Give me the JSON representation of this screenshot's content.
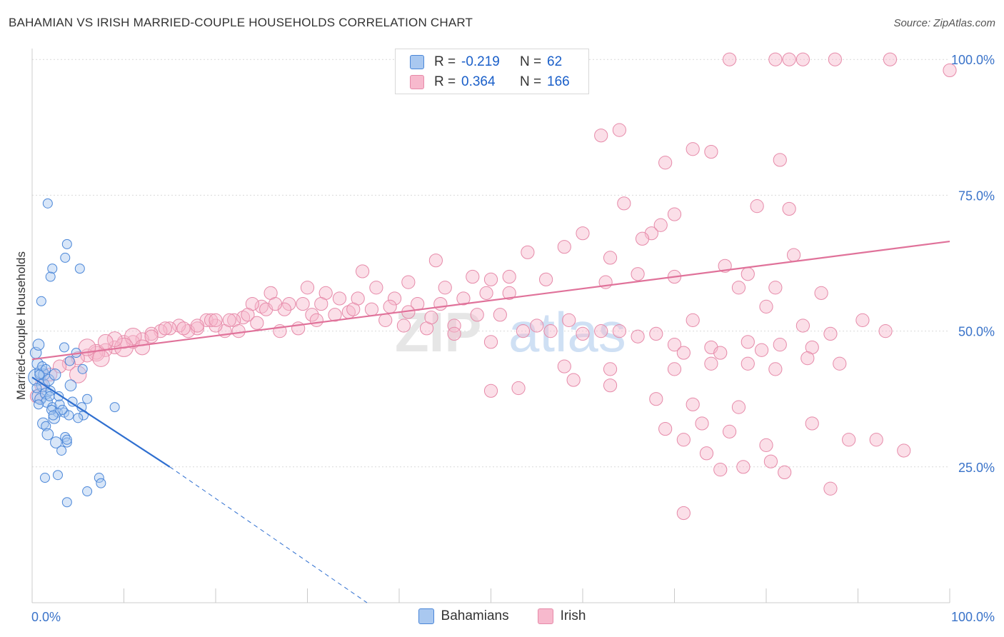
{
  "header": {
    "title": "BAHAMIAN VS IRISH MARRIED-COUPLE HOUSEHOLDS CORRELATION CHART",
    "source": "Source: ZipAtlas.com"
  },
  "legend": {
    "r_label": "R =",
    "n_label": "N =",
    "bahamians": {
      "r": "-0.219",
      "n": "62"
    },
    "irish": {
      "r": "0.364",
      "n": "166"
    }
  },
  "watermark": {
    "zip": "ZIP",
    "atlas": "atlas"
  },
  "colors": {
    "bahamians_fill": "#a9c8f0",
    "bahamians_stroke": "#4a86d8",
    "bahamians_line": "#2f6fd0",
    "irish_fill": "#f7b9cd",
    "irish_stroke": "#e68aa9",
    "irish_line": "#e0729a",
    "axis_text": "#3a73c9",
    "grid": "#d9d9d9"
  },
  "chart_data": {
    "type": "scatter",
    "title": "BAHAMIAN VS IRISH MARRIED-COUPLE HOUSEHOLDS CORRELATION CHART",
    "xlabel": "",
    "ylabel": "Married-couple Households",
    "xlim": [
      0,
      100
    ],
    "ylim": [
      0,
      102
    ],
    "x_tick_labels": [
      "0.0%",
      "100.0%"
    ],
    "y_ticks": [
      25,
      50,
      75,
      100
    ],
    "y_tick_labels": [
      "25.0%",
      "50.0%",
      "75.0%",
      "100.0%"
    ],
    "grid": true,
    "legend_position": "top-center",
    "series": [
      {
        "name": "Bahamians",
        "r": -0.219,
        "n": 62,
        "trendline": {
          "x": [
            0,
            15
          ],
          "y": [
            41.5,
            25.0
          ]
        },
        "trendline_dashed_extension": {
          "x": [
            15,
            36.5
          ],
          "y": [
            25.0,
            0.0
          ]
        },
        "points": [
          [
            0.5,
            41.5,
            9
          ],
          [
            0.8,
            38,
            8
          ],
          [
            1,
            42.5,
            7
          ],
          [
            1.2,
            40,
            7
          ],
          [
            0.6,
            44,
            6
          ],
          [
            0.9,
            37.5,
            6
          ],
          [
            1.5,
            38.5,
            6
          ],
          [
            0.4,
            46,
            6
          ],
          [
            0.7,
            47.5,
            6
          ],
          [
            1.3,
            42,
            6
          ],
          [
            1.8,
            41,
            6
          ],
          [
            2,
            39,
            5
          ],
          [
            2.5,
            42,
            6
          ],
          [
            1.6,
            37,
            6
          ],
          [
            2.2,
            36,
            5
          ],
          [
            2.8,
            35,
            5
          ],
          [
            3,
            36.5,
            5
          ],
          [
            2.4,
            34,
            6
          ],
          [
            3.5,
            35,
            5
          ],
          [
            4,
            34.5,
            5
          ],
          [
            1.2,
            33,
            6
          ],
          [
            1.5,
            32.5,
            5
          ],
          [
            1.7,
            31,
            6
          ],
          [
            2.6,
            29.5,
            6
          ],
          [
            3.2,
            28,
            5
          ],
          [
            3.6,
            30.5,
            5
          ],
          [
            3.8,
            29.5,
            5
          ],
          [
            1.4,
            23,
            5
          ],
          [
            2.8,
            23.5,
            5
          ],
          [
            3.8,
            66,
            5
          ],
          [
            3.6,
            63.5,
            5
          ],
          [
            2.2,
            61.5,
            5
          ],
          [
            2,
            60,
            5
          ],
          [
            5.2,
            61.5,
            5
          ],
          [
            1,
            55.5,
            5
          ],
          [
            1.7,
            73.5,
            5
          ],
          [
            3.5,
            47,
            5
          ],
          [
            5.5,
            43,
            5
          ],
          [
            6,
            37.5,
            5
          ],
          [
            5.4,
            36,
            5
          ],
          [
            5.6,
            34.5,
            5
          ],
          [
            4.2,
            40,
            6
          ],
          [
            4.8,
            46,
            5
          ],
          [
            4.4,
            37,
            5
          ],
          [
            5,
            34,
            5
          ],
          [
            9,
            36,
            5
          ],
          [
            3.8,
            30,
            5
          ],
          [
            6,
            20.5,
            5
          ],
          [
            7.3,
            23,
            5
          ],
          [
            7.5,
            22,
            5
          ],
          [
            3.8,
            18.5,
            5
          ],
          [
            1.1,
            43.5,
            5
          ],
          [
            0.7,
            36.5,
            5
          ],
          [
            2.1,
            35.5,
            5
          ],
          [
            0.5,
            39.5,
            5
          ],
          [
            1.5,
            43,
            5
          ],
          [
            0.8,
            42,
            5
          ],
          [
            2.3,
            34.5,
            5
          ],
          [
            3.3,
            35.5,
            5
          ],
          [
            1.9,
            38,
            5
          ],
          [
            2.9,
            38,
            5
          ],
          [
            4.1,
            44.5,
            5
          ]
        ]
      },
      {
        "name": "Irish",
        "r": 0.364,
        "n": 166,
        "trendline": {
          "x": [
            0,
            100
          ],
          "y": [
            44.8,
            66.5
          ]
        },
        "points": [
          [
            76,
            100,
            7
          ],
          [
            81,
            100,
            7
          ],
          [
            82.5,
            100,
            7
          ],
          [
            84,
            100,
            7
          ],
          [
            87.5,
            100,
            7
          ],
          [
            93.5,
            100,
            7
          ],
          [
            100,
            98,
            7
          ],
          [
            64.5,
            73.5,
            7
          ],
          [
            70,
            71.5,
            7
          ],
          [
            67.5,
            68,
            7
          ],
          [
            60,
            68,
            7
          ],
          [
            68.5,
            69.5,
            7
          ],
          [
            63,
            63.5,
            7
          ],
          [
            58,
            65.5,
            7
          ],
          [
            54,
            64.5,
            7
          ],
          [
            44,
            63,
            7
          ],
          [
            50,
            59.5,
            7
          ],
          [
            48,
            60,
            7
          ],
          [
            52,
            60,
            7
          ],
          [
            56,
            59.5,
            7
          ],
          [
            62.5,
            59,
            7
          ],
          [
            66,
            60.5,
            7
          ],
          [
            70,
            60,
            7
          ],
          [
            75.5,
            62,
            7
          ],
          [
            78,
            60.5,
            7
          ],
          [
            83,
            64,
            7
          ],
          [
            77,
            58,
            7
          ],
          [
            81,
            58,
            7
          ],
          [
            86,
            57,
            7
          ],
          [
            82.5,
            72.5,
            7
          ],
          [
            81.5,
            81.5,
            7
          ],
          [
            79,
            73,
            7
          ],
          [
            74,
            83,
            7
          ],
          [
            72,
            83.5,
            7
          ],
          [
            69,
            81,
            7
          ],
          [
            64,
            87,
            7
          ],
          [
            62,
            86,
            7
          ],
          [
            66.5,
            67,
            7
          ],
          [
            52,
            57,
            7
          ],
          [
            45,
            58,
            7
          ],
          [
            41,
            59,
            7
          ],
          [
            36,
            61,
            7
          ],
          [
            32,
            57,
            7
          ],
          [
            30,
            58,
            7
          ],
          [
            28,
            55,
            7
          ],
          [
            26,
            57,
            7
          ],
          [
            25,
            54.5,
            7
          ],
          [
            24,
            55,
            7
          ],
          [
            23,
            52.5,
            7
          ],
          [
            22,
            52,
            7
          ],
          [
            21,
            50,
            7
          ],
          [
            20,
            51,
            7
          ],
          [
            19,
            52,
            7
          ],
          [
            18,
            50.5,
            7
          ],
          [
            17,
            50,
            7
          ],
          [
            16,
            51,
            7
          ],
          [
            15,
            50.5,
            7
          ],
          [
            14,
            50,
            7
          ],
          [
            13,
            49.5,
            7
          ],
          [
            12,
            48.5,
            7
          ],
          [
            11,
            48,
            7
          ],
          [
            10,
            48,
            7
          ],
          [
            9,
            47,
            7
          ],
          [
            8,
            46.5,
            7
          ],
          [
            7,
            46,
            7
          ],
          [
            6,
            45.5,
            7
          ],
          [
            5,
            45,
            7
          ],
          [
            4,
            44,
            7
          ],
          [
            3,
            43.5,
            7
          ],
          [
            2,
            42,
            7
          ],
          [
            1,
            40,
            7
          ],
          [
            0.5,
            38,
            7
          ],
          [
            11,
            49,
            9
          ],
          [
            10,
            47,
            10
          ],
          [
            9,
            48.5,
            8
          ],
          [
            7,
            46,
            9
          ],
          [
            6,
            47,
            9
          ],
          [
            8,
            48,
            8
          ],
          [
            5,
            42,
            9
          ],
          [
            7.5,
            45,
            9
          ],
          [
            12,
            47,
            8
          ],
          [
            13,
            49,
            7
          ],
          [
            14.5,
            50.5,
            7
          ],
          [
            16.5,
            50.5,
            7
          ],
          [
            18,
            51,
            7
          ],
          [
            19.5,
            52,
            7
          ],
          [
            21.5,
            52,
            7
          ],
          [
            23.5,
            53,
            7
          ],
          [
            25.5,
            54,
            7
          ],
          [
            27.5,
            54,
            7
          ],
          [
            29.5,
            55,
            7
          ],
          [
            31.5,
            55,
            7
          ],
          [
            33.5,
            56,
            7
          ],
          [
            35.5,
            56,
            7
          ],
          [
            37.5,
            58,
            7
          ],
          [
            39.5,
            56,
            7
          ],
          [
            42,
            55,
            7
          ],
          [
            44.5,
            55,
            7
          ],
          [
            47,
            56,
            7
          ],
          [
            49.5,
            57,
            7
          ],
          [
            26.5,
            55,
            7
          ],
          [
            30.5,
            53,
            7
          ],
          [
            34.5,
            53.5,
            7
          ],
          [
            38.5,
            52,
            7
          ],
          [
            40.5,
            51,
            7
          ],
          [
            43,
            50.5,
            7
          ],
          [
            46,
            51,
            7
          ],
          [
            48.5,
            53,
            7
          ],
          [
            51,
            53,
            7
          ],
          [
            53.5,
            50,
            7
          ],
          [
            56.5,
            50,
            7
          ],
          [
            60,
            49.5,
            7
          ],
          [
            64,
            50,
            7
          ],
          [
            68,
            49.5,
            7
          ],
          [
            20,
            52,
            7
          ],
          [
            22.5,
            50,
            7
          ],
          [
            24.5,
            51.5,
            7
          ],
          [
            27,
            50,
            7
          ],
          [
            29,
            50.5,
            7
          ],
          [
            31,
            52,
            7
          ],
          [
            33,
            53,
            7
          ],
          [
            35,
            54,
            7
          ],
          [
            37,
            54,
            7
          ],
          [
            39,
            54.5,
            7
          ],
          [
            41,
            53.5,
            7
          ],
          [
            43.5,
            52.5,
            7
          ],
          [
            46,
            49.5,
            7
          ],
          [
            50,
            48,
            7
          ],
          [
            55,
            51,
            7
          ],
          [
            58.5,
            52,
            7
          ],
          [
            62,
            50,
            7
          ],
          [
            66,
            49,
            7
          ],
          [
            70,
            47.5,
            7
          ],
          [
            74,
            47,
            7
          ],
          [
            78,
            48,
            7
          ],
          [
            81.5,
            47.5,
            7
          ],
          [
            85,
            47,
            7
          ],
          [
            71,
            46,
            7
          ],
          [
            75,
            46,
            7
          ],
          [
            79.5,
            46.5,
            7
          ],
          [
            72,
            52,
            7
          ],
          [
            80,
            54.5,
            7
          ],
          [
            84,
            51,
            7
          ],
          [
            87,
            49.5,
            7
          ],
          [
            90.5,
            52,
            7
          ],
          [
            93,
            50,
            7
          ],
          [
            58,
            43.5,
            7
          ],
          [
            63,
            43,
            7
          ],
          [
            70,
            43,
            7
          ],
          [
            74,
            44,
            7
          ],
          [
            78,
            44,
            7
          ],
          [
            81,
            43,
            7
          ],
          [
            84.5,
            45,
            7
          ],
          [
            88,
            44,
            7
          ],
          [
            50,
            39,
            7
          ],
          [
            53,
            39.5,
            7
          ],
          [
            59,
            41,
            7
          ],
          [
            63,
            40,
            7
          ],
          [
            68,
            37.5,
            7
          ],
          [
            72,
            36.5,
            7
          ],
          [
            77,
            36,
            7
          ],
          [
            69,
            32,
            7
          ],
          [
            71,
            30,
            7
          ],
          [
            73,
            33,
            7
          ],
          [
            76,
            31.5,
            7
          ],
          [
            80,
            29,
            7
          ],
          [
            85,
            33,
            7
          ],
          [
            89,
            30,
            7
          ],
          [
            92,
            30,
            7
          ],
          [
            95,
            28,
            7
          ],
          [
            73.5,
            27.5,
            7
          ],
          [
            80.5,
            26,
            7
          ],
          [
            77.5,
            25,
            7
          ],
          [
            75,
            24.5,
            7
          ],
          [
            82,
            24,
            7
          ],
          [
            71,
            16.5,
            7
          ],
          [
            87,
            21,
            7
          ]
        ]
      }
    ]
  }
}
